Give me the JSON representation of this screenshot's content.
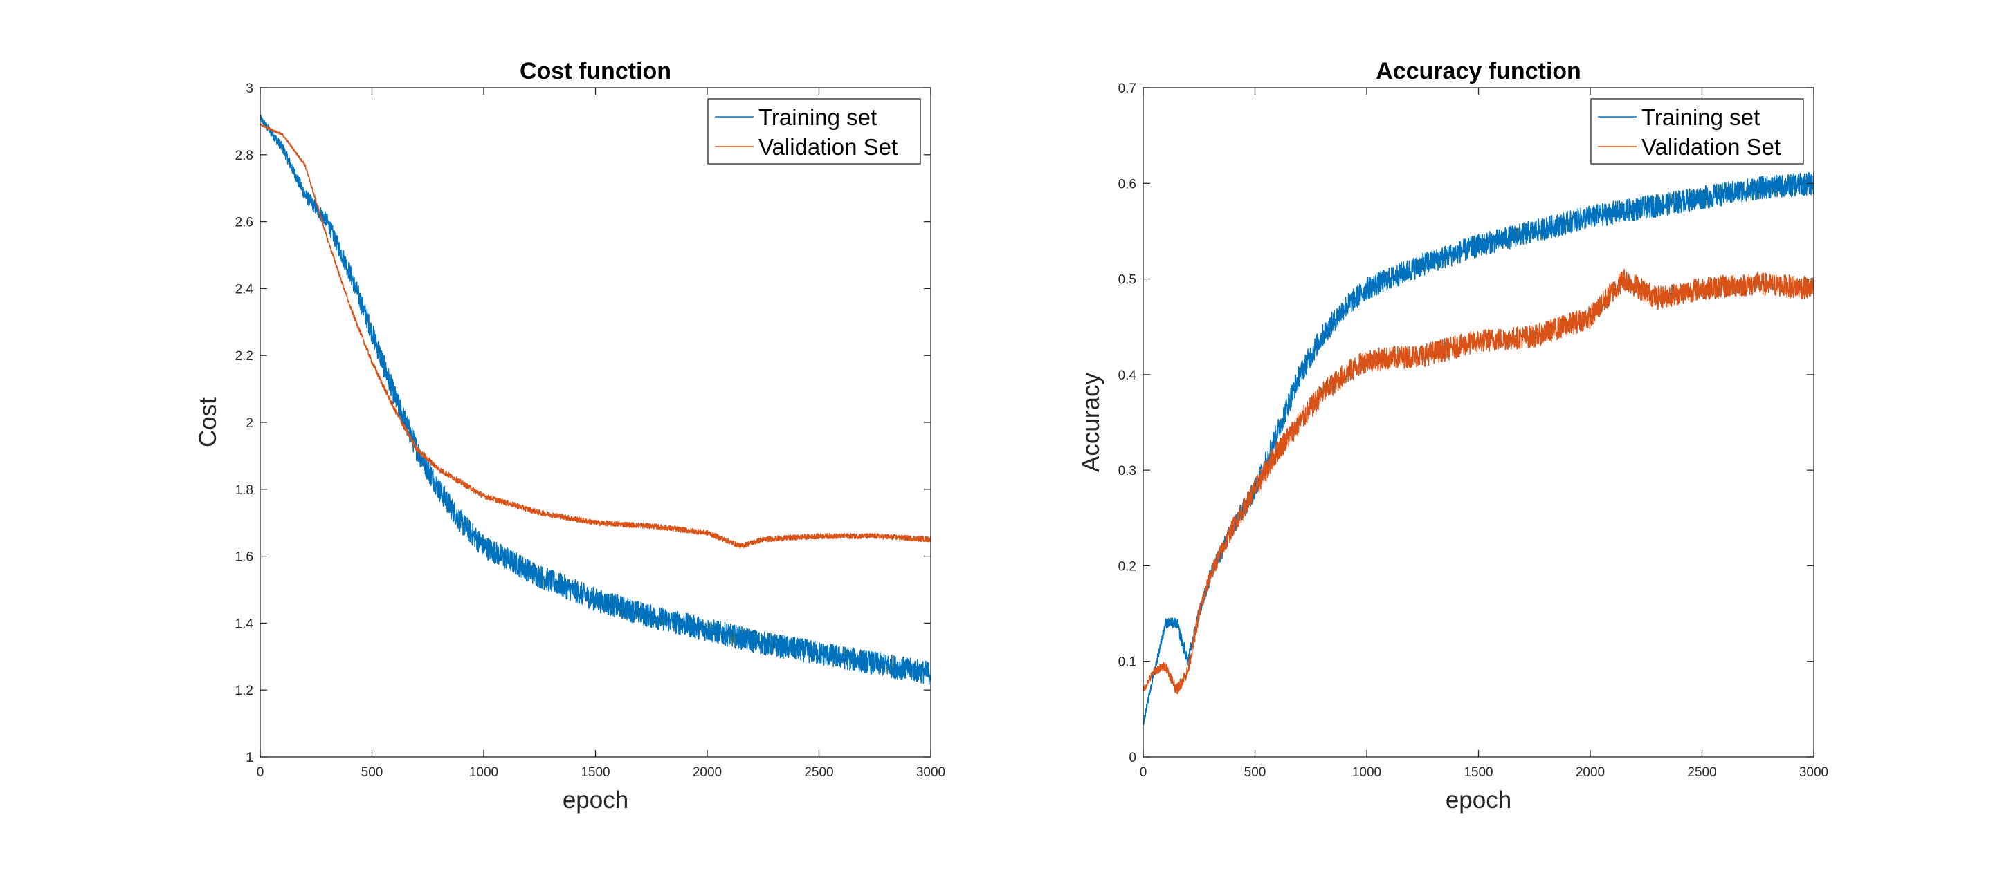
{
  "chart_data": [
    {
      "type": "line",
      "title": "Cost function",
      "xlabel": "epoch",
      "ylabel": "Cost",
      "xlim": [
        0,
        3000
      ],
      "ylim": [
        1,
        3
      ],
      "xticks": [
        0,
        500,
        1000,
        1500,
        2000,
        2500,
        3000
      ],
      "yticks": [
        1,
        1.2,
        1.4,
        1.6,
        1.8,
        2,
        2.2,
        2.4,
        2.6,
        2.8,
        3
      ],
      "grid": false,
      "legend_position": "top-right",
      "series": [
        {
          "name": "Training set",
          "color": "#0072BD",
          "x": [
            0,
            100,
            200,
            300,
            400,
            500,
            600,
            700,
            800,
            900,
            1000,
            1250,
            1500,
            1750,
            2000,
            2250,
            2500,
            2750,
            3000
          ],
          "y": [
            2.91,
            2.82,
            2.68,
            2.6,
            2.45,
            2.27,
            2.08,
            1.92,
            1.8,
            1.7,
            1.63,
            1.54,
            1.47,
            1.42,
            1.38,
            1.34,
            1.31,
            1.28,
            1.25
          ],
          "noise_amplitude": 0.035
        },
        {
          "name": "Validation Set",
          "color": "#D95319",
          "x": [
            0,
            100,
            200,
            300,
            400,
            500,
            600,
            700,
            800,
            900,
            1000,
            1250,
            1500,
            1750,
            2000,
            2150,
            2250,
            2500,
            2750,
            3000
          ],
          "y": [
            2.89,
            2.86,
            2.77,
            2.55,
            2.35,
            2.18,
            2.04,
            1.92,
            1.86,
            1.82,
            1.78,
            1.73,
            1.7,
            1.69,
            1.67,
            1.63,
            1.65,
            1.66,
            1.66,
            1.65
          ],
          "noise_amplitude": 0.008
        }
      ]
    },
    {
      "type": "line",
      "title": "Accuracy function",
      "xlabel": "epoch",
      "ylabel": "Accuracy",
      "xlim": [
        0,
        3000
      ],
      "ylim": [
        0,
        0.7
      ],
      "xticks": [
        0,
        500,
        1000,
        1500,
        2000,
        2500,
        3000
      ],
      "yticks": [
        0,
        0.1,
        0.2,
        0.3,
        0.4,
        0.5,
        0.6,
        0.7
      ],
      "grid": false,
      "legend_position": "top-right",
      "series": [
        {
          "name": "Training set",
          "color": "#0072BD",
          "x": [
            0,
            50,
            100,
            150,
            200,
            250,
            300,
            400,
            500,
            600,
            700,
            800,
            900,
            1000,
            1250,
            1500,
            1750,
            2000,
            2250,
            2500,
            2750,
            3000
          ],
          "y": [
            0.035,
            0.09,
            0.14,
            0.14,
            0.1,
            0.15,
            0.19,
            0.24,
            0.28,
            0.34,
            0.4,
            0.44,
            0.47,
            0.49,
            0.515,
            0.535,
            0.55,
            0.565,
            0.575,
            0.585,
            0.595,
            0.6
          ],
          "noise_amplitude": 0.012
        },
        {
          "name": "Validation Set",
          "color": "#D95319",
          "x": [
            0,
            50,
            100,
            150,
            200,
            250,
            300,
            400,
            500,
            600,
            700,
            800,
            900,
            1000,
            1250,
            1500,
            1750,
            2000,
            2150,
            2300,
            2500,
            2750,
            3000
          ],
          "y": [
            0.07,
            0.09,
            0.095,
            0.07,
            0.09,
            0.15,
            0.19,
            0.24,
            0.28,
            0.32,
            0.35,
            0.38,
            0.4,
            0.415,
            0.42,
            0.435,
            0.44,
            0.46,
            0.5,
            0.48,
            0.49,
            0.495,
            0.49
          ],
          "noise_amplitude": 0.012
        }
      ]
    }
  ]
}
